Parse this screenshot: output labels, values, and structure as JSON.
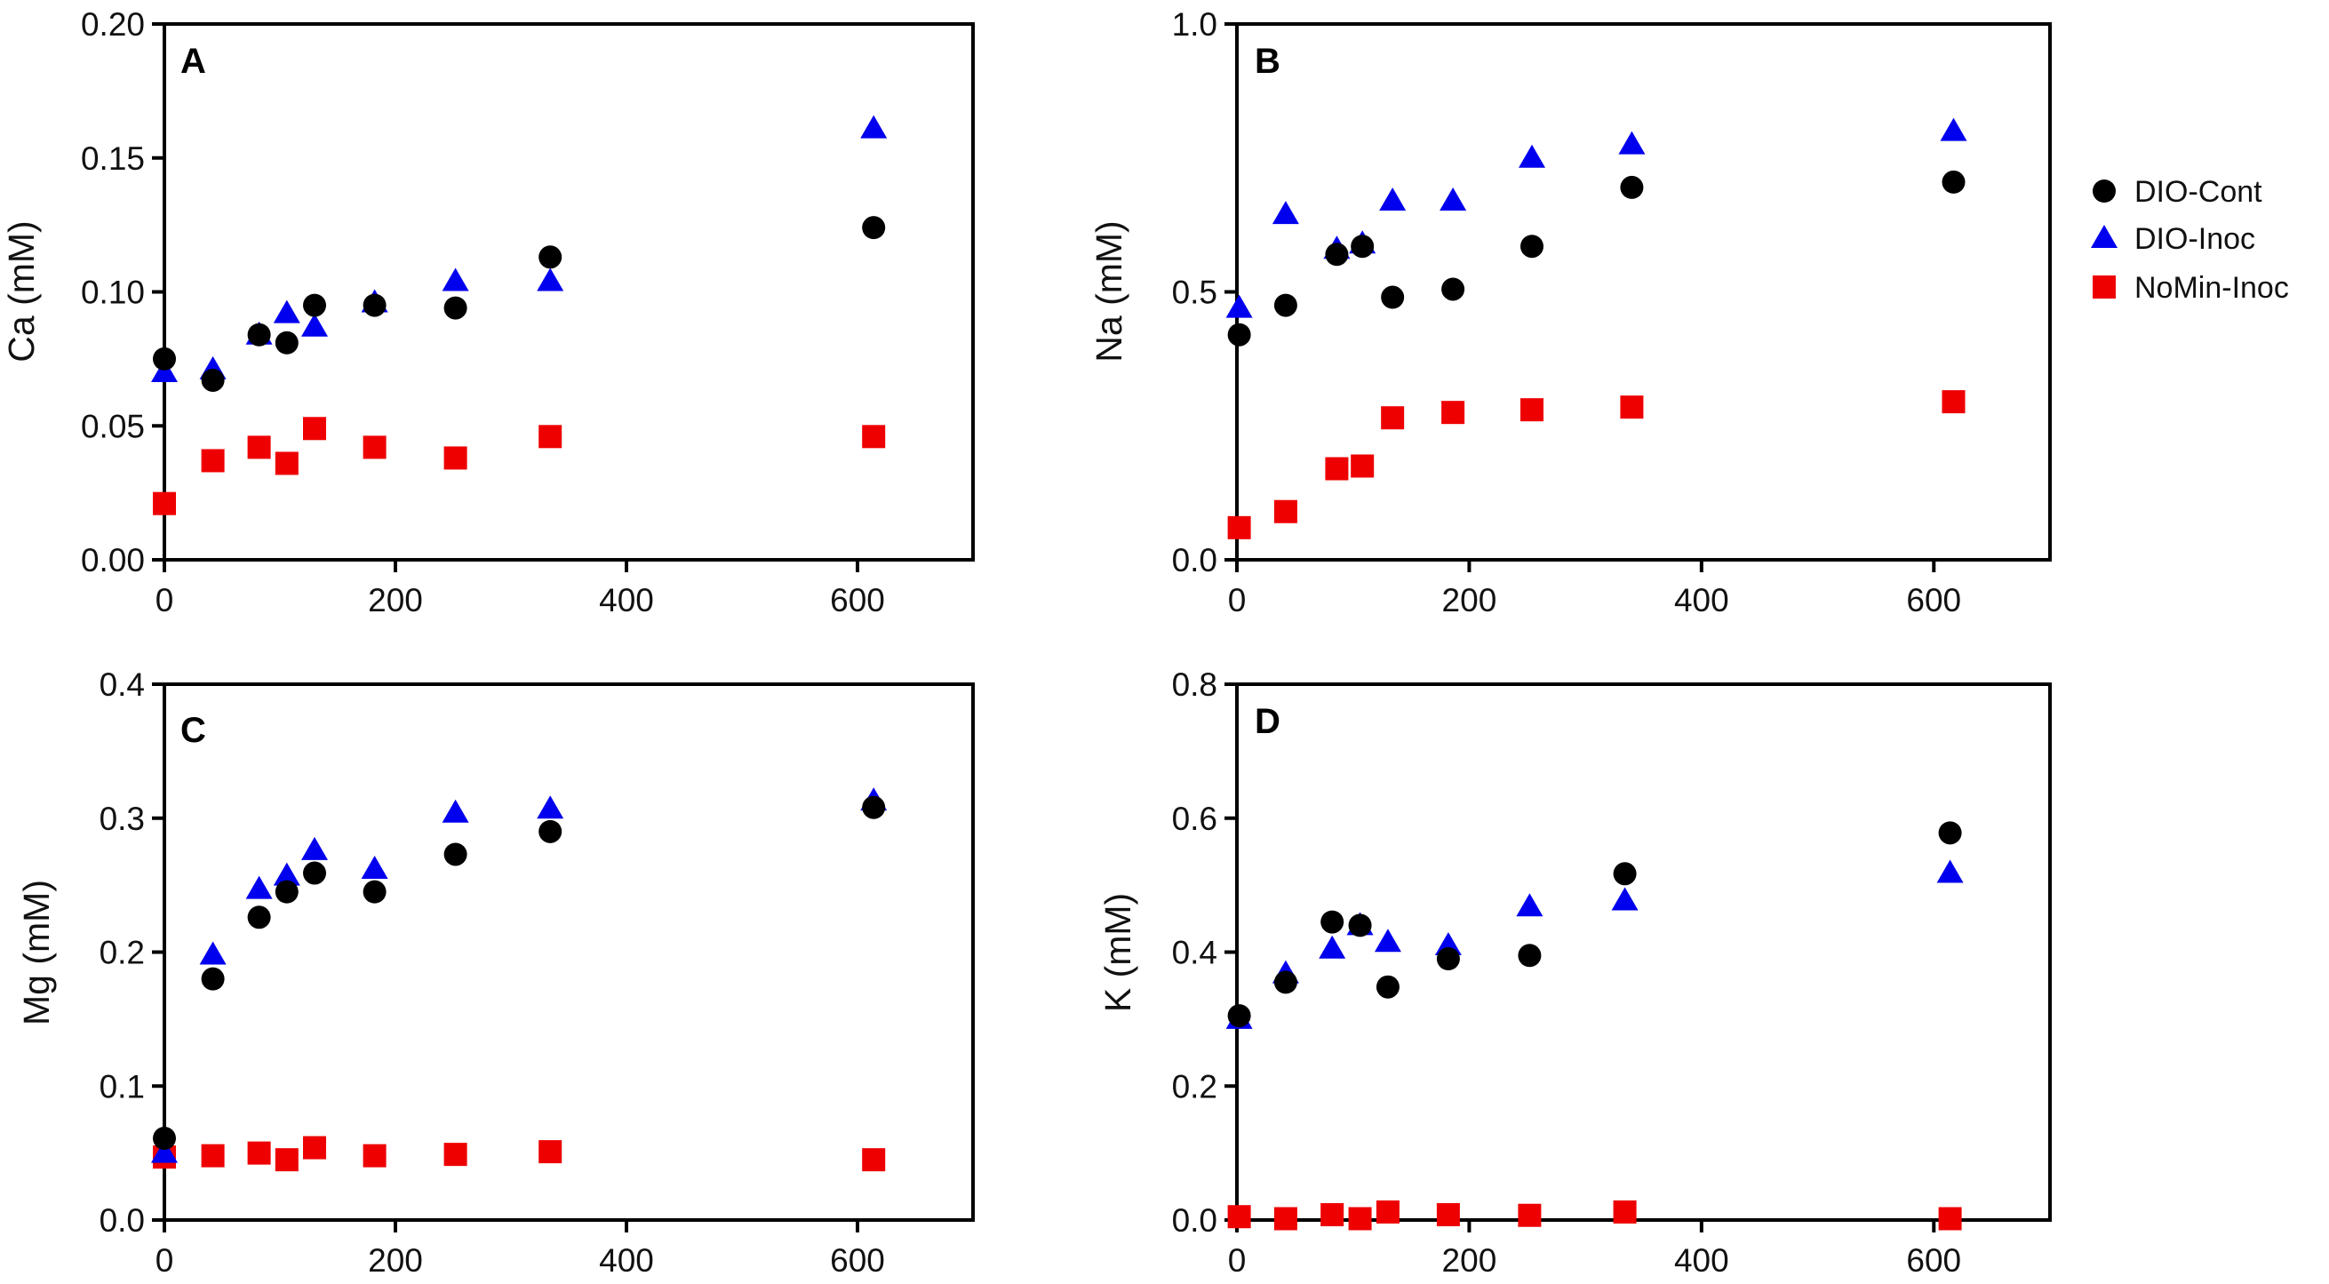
{
  "chart_data": {
    "series_meta": [
      {
        "name": "DIO-Cont",
        "marker": "circle",
        "color": "#000000"
      },
      {
        "name": "DIO-Inoc",
        "marker": "triangle",
        "color": "#0000ee"
      },
      {
        "name": "NoMin-Inoc",
        "marker": "square",
        "color": "#ee0000"
      }
    ],
    "legend_position": "right",
    "panels": [
      {
        "type": "scatter",
        "label": "A",
        "ylabel": "Ca (mM)",
        "xlim": [
          0,
          700
        ],
        "ylim": [
          0,
          0.2
        ],
        "xticks": [
          "0",
          "200",
          "400",
          "600"
        ],
        "xtick_values": [
          0,
          200,
          400,
          600
        ],
        "yticks": [
          "0.00",
          "0.05",
          "0.10",
          "0.15",
          "0.20"
        ],
        "ytick_values": [
          0,
          0.05,
          0.1,
          0.15,
          0.2
        ],
        "series": [
          {
            "name": "DIO-Cont",
            "points": [
              [
                0,
                0.075
              ],
              [
                42,
                0.067
              ],
              [
                82,
                0.084
              ],
              [
                106,
                0.081
              ],
              [
                130,
                0.095
              ],
              [
                182,
                0.095
              ],
              [
                252,
                0.094
              ],
              [
                334,
                0.113
              ],
              [
                614,
                0.124
              ]
            ]
          },
          {
            "name": "DIO-Inoc",
            "points": [
              [
                0,
                0.07
              ],
              [
                42,
                0.071
              ],
              [
                82,
                0.084
              ],
              [
                106,
                0.092
              ],
              [
                130,
                0.087
              ],
              [
                182,
                0.096
              ],
              [
                252,
                0.104
              ],
              [
                334,
                0.104
              ],
              [
                614,
                0.161
              ]
            ]
          },
          {
            "name": "NoMin-Inoc",
            "points": [
              [
                0,
                0.021
              ],
              [
                42,
                0.037
              ],
              [
                82,
                0.042
              ],
              [
                106,
                0.036
              ],
              [
                130,
                0.049
              ],
              [
                182,
                0.042
              ],
              [
                252,
                0.038
              ],
              [
                334,
                0.046
              ],
              [
                614,
                0.046
              ]
            ]
          }
        ]
      },
      {
        "type": "scatter",
        "label": "B",
        "ylabel": "Na (mM)",
        "xlim": [
          0,
          700
        ],
        "ylim": [
          0,
          1.0
        ],
        "xticks": [
          "0",
          "200",
          "400",
          "600"
        ],
        "xtick_values": [
          0,
          200,
          400,
          600
        ],
        "yticks": [
          "0.0",
          "0.5",
          "1.0"
        ],
        "ytick_values": [
          0,
          0.5,
          1.0
        ],
        "series": [
          {
            "name": "DIO-Cont",
            "points": [
              [
                2,
                0.42
              ],
              [
                42,
                0.475
              ],
              [
                86,
                0.57
              ],
              [
                108,
                0.585
              ],
              [
                134,
                0.49
              ],
              [
                186,
                0.505
              ],
              [
                254,
                0.585
              ],
              [
                340,
                0.695
              ],
              [
                617,
                0.705
              ]
            ]
          },
          {
            "name": "DIO-Inoc",
            "points": [
              [
                2,
                0.47
              ],
              [
                42,
                0.645
              ],
              [
                86,
                0.58
              ],
              [
                108,
                0.59
              ],
              [
                134,
                0.67
              ],
              [
                186,
                0.67
              ],
              [
                254,
                0.75
              ],
              [
                340,
                0.775
              ],
              [
                617,
                0.8
              ]
            ]
          },
          {
            "name": "NoMin-Inoc",
            "points": [
              [
                2,
                0.06
              ],
              [
                42,
                0.09
              ],
              [
                86,
                0.17
              ],
              [
                108,
                0.175
              ],
              [
                134,
                0.265
              ],
              [
                186,
                0.275
              ],
              [
                254,
                0.28
              ],
              [
                340,
                0.285
              ],
              [
                617,
                0.295
              ]
            ]
          }
        ]
      },
      {
        "type": "scatter",
        "label": "C",
        "ylabel": "Mg (mM)",
        "xlim": [
          0,
          700
        ],
        "ylim": [
          0,
          0.4
        ],
        "xticks": [
          "0",
          "200",
          "400",
          "600"
        ],
        "xtick_values": [
          0,
          200,
          400,
          600
        ],
        "yticks": [
          "0.0",
          "0.1",
          "0.2",
          "0.3",
          "0.4"
        ],
        "ytick_values": [
          0,
          0.1,
          0.2,
          0.3,
          0.4
        ],
        "series": [
          {
            "name": "DIO-Cont",
            "points": [
              [
                0,
                0.061
              ],
              [
                42,
                0.18
              ],
              [
                82,
                0.226
              ],
              [
                106,
                0.245
              ],
              [
                130,
                0.259
              ],
              [
                182,
                0.245
              ],
              [
                252,
                0.273
              ],
              [
                334,
                0.29
              ],
              [
                614,
                0.308
              ]
            ]
          },
          {
            "name": "DIO-Inoc",
            "points": [
              [
                0,
                0.05
              ],
              [
                42,
                0.198
              ],
              [
                82,
                0.247
              ],
              [
                106,
                0.257
              ],
              [
                130,
                0.276
              ],
              [
                182,
                0.262
              ],
              [
                252,
                0.304
              ],
              [
                334,
                0.307
              ],
              [
                614,
                0.313
              ]
            ]
          },
          {
            "name": "NoMin-Inoc",
            "points": [
              [
                0,
                0.047
              ],
              [
                42,
                0.048
              ],
              [
                82,
                0.05
              ],
              [
                106,
                0.045
              ],
              [
                130,
                0.054
              ],
              [
                182,
                0.048
              ],
              [
                252,
                0.049
              ],
              [
                334,
                0.051
              ],
              [
                614,
                0.045
              ]
            ]
          }
        ]
      },
      {
        "type": "scatter",
        "label": "D",
        "ylabel": "K (mM)",
        "xlim": [
          0,
          700
        ],
        "ylim": [
          0,
          0.8
        ],
        "xticks": [
          "0",
          "200",
          "400",
          "600"
        ],
        "xtick_values": [
          0,
          200,
          400,
          600
        ],
        "yticks": [
          "0.0",
          "0.2",
          "0.4",
          "0.6",
          "0.8"
        ],
        "ytick_values": [
          0,
          0.2,
          0.4,
          0.6,
          0.8
        ],
        "series": [
          {
            "name": "DIO-Cont",
            "points": [
              [
                2,
                0.305
              ],
              [
                42,
                0.355
              ],
              [
                82,
                0.445
              ],
              [
                106,
                0.44
              ],
              [
                130,
                0.348
              ],
              [
                182,
                0.39
              ],
              [
                252,
                0.395
              ],
              [
                334,
                0.517
              ],
              [
                614,
                0.578
              ]
            ]
          },
          {
            "name": "DIO-Inoc",
            "points": [
              [
                2,
                0.3
              ],
              [
                42,
                0.368
              ],
              [
                82,
                0.405
              ],
              [
                106,
                0.44
              ],
              [
                130,
                0.415
              ],
              [
                182,
                0.41
              ],
              [
                252,
                0.468
              ],
              [
                334,
                0.477
              ],
              [
                614,
                0.518
              ]
            ]
          },
          {
            "name": "NoMin-Inoc",
            "points": [
              [
                2,
                0.005
              ],
              [
                42,
                0.002
              ],
              [
                82,
                0.008
              ],
              [
                106,
                0.002
              ],
              [
                130,
                0.012
              ],
              [
                182,
                0.008
              ],
              [
                252,
                0.007
              ],
              [
                334,
                0.012
              ],
              [
                614,
                0.002
              ]
            ]
          }
        ]
      }
    ]
  }
}
